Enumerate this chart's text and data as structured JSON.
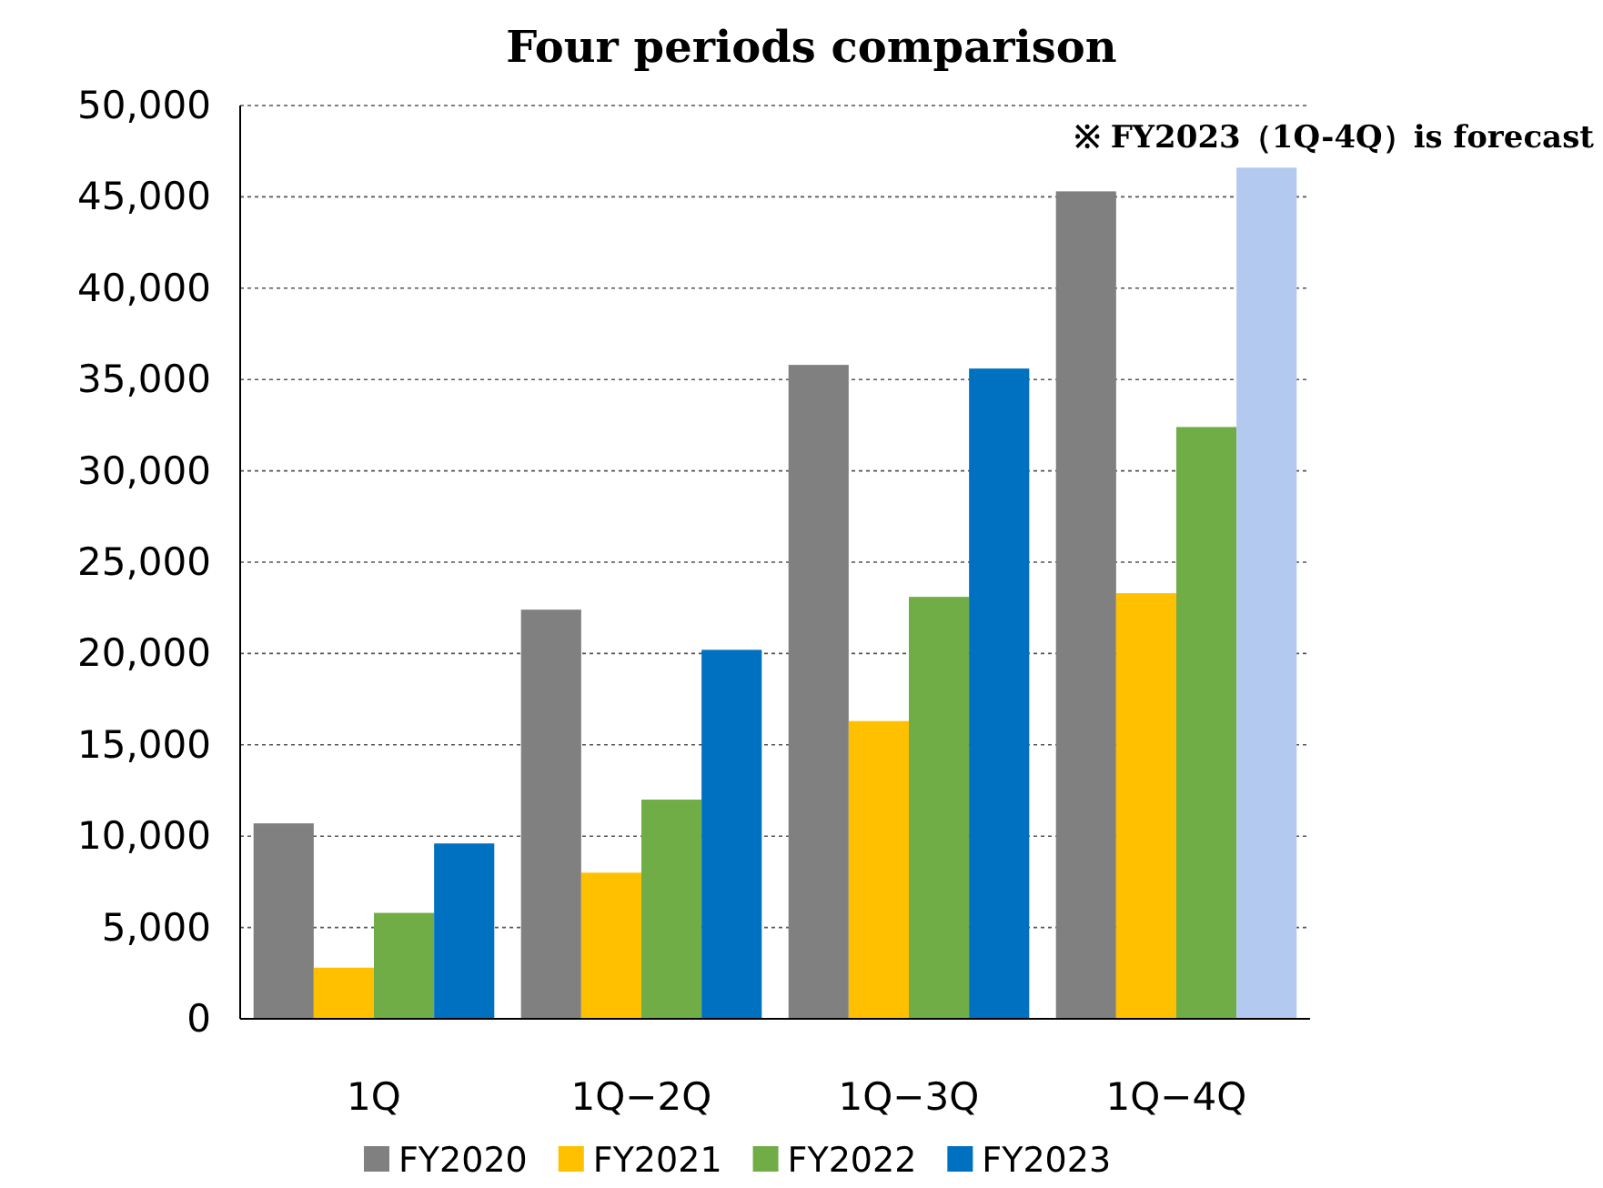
{
  "chart_data": {
    "type": "bar",
    "title": "Four periods comparison",
    "categories": [
      "1Q",
      "1Q−2Q",
      "1Q−3Q",
      "1Q−4Q"
    ],
    "series": [
      {
        "name": "FY2020",
        "color": "#808080",
        "values": [
          10700,
          22400,
          35800,
          45300
        ]
      },
      {
        "name": "FY2021",
        "color": "#ffc000",
        "values": [
          2800,
          8000,
          16300,
          23300
        ]
      },
      {
        "name": "FY2022",
        "color": "#70ad47",
        "values": [
          5800,
          12000,
          23100,
          32400
        ]
      },
      {
        "name": "FY2023",
        "color": "#0070c0",
        "colors": [
          "#0070c0",
          "#0070c0",
          "#0070c0",
          "#b4c9ef"
        ],
        "values": [
          9600,
          20200,
          35600,
          46600
        ]
      }
    ],
    "ylim": [
      0,
      50000
    ],
    "yticks": [
      {
        "value": 0,
        "label": "0"
      },
      {
        "value": 5000,
        "label": "5,000"
      },
      {
        "value": 10000,
        "label": "10,000"
      },
      {
        "value": 15000,
        "label": "15,000"
      },
      {
        "value": 20000,
        "label": "20,000"
      },
      {
        "value": 25000,
        "label": "25,000"
      },
      {
        "value": 30000,
        "label": "30,000"
      },
      {
        "value": 35000,
        "label": "35,000"
      },
      {
        "value": 40000,
        "label": "40,000"
      },
      {
        "value": 45000,
        "label": "45,000"
      },
      {
        "value": 50000,
        "label": "50,000"
      }
    ],
    "grid": "y",
    "legend": "bottom",
    "annotations": [
      "※ FY2023（1Q-4Q）is forecast"
    ]
  }
}
